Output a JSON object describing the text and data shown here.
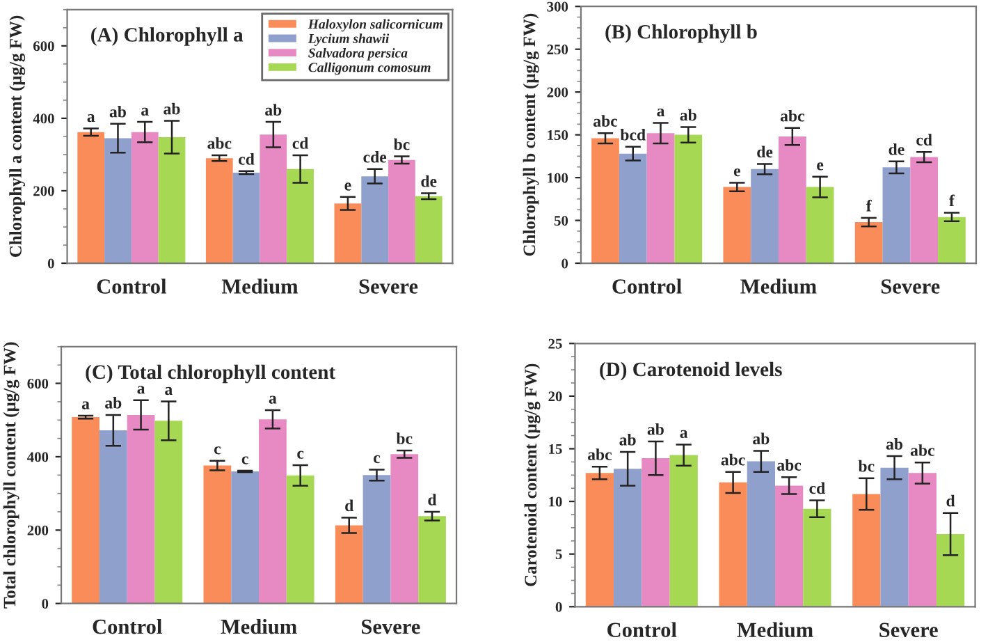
{
  "chart_data": [
    {
      "type": "bar",
      "title": "(A) Chlorophyll a",
      "ylabel": "Chlorophyll a content (μg/g FW)",
      "categories": [
        "Control",
        "Medium",
        "Severe"
      ],
      "ylim": [
        0,
        700
      ],
      "yticks": [
        0,
        200,
        400,
        600
      ],
      "legend": "top right",
      "series": [
        {
          "name": "Haloxylon salicornicum",
          "color": "#fa8c5a",
          "values": [
            362,
            290,
            165
          ],
          "errors": [
            10,
            8,
            18
          ],
          "value_labels": [
            "a",
            "abc",
            "e"
          ]
        },
        {
          "name": "Lycium shawii",
          "color": "#8fa0cc",
          "values": [
            345,
            250,
            240
          ],
          "errors": [
            40,
            4,
            20
          ],
          "value_labels": [
            "ab",
            "cd",
            "cde"
          ]
        },
        {
          "name": "Salvadora persica",
          "color": "#e78ac3",
          "values": [
            362,
            355,
            285
          ],
          "errors": [
            28,
            35,
            10
          ],
          "value_labels": [
            "a",
            "ab",
            "bc"
          ]
        },
        {
          "name": "Calligonum comosum",
          "color": "#a6d854",
          "values": [
            348,
            260,
            185
          ],
          "errors": [
            45,
            38,
            8
          ],
          "value_labels": [
            "ab",
            "cd",
            "de"
          ]
        }
      ]
    },
    {
      "type": "bar",
      "title": "(B) Chlorophyll b",
      "ylabel": "Chlorophyll b content (μg/g FW)",
      "categories": [
        "Control",
        "Medium",
        "Severe"
      ],
      "ylim": [
        0,
        300
      ],
      "yticks": [
        0,
        50,
        100,
        150,
        200,
        250,
        300
      ],
      "series": [
        {
          "color": "#fa8c5a",
          "values": [
            146,
            89,
            48
          ],
          "errors": [
            6,
            5,
            5
          ],
          "value_labels": [
            "abc",
            "e",
            "f"
          ]
        },
        {
          "color": "#8fa0cc",
          "values": [
            128,
            110,
            112
          ],
          "errors": [
            8,
            6,
            7
          ],
          "value_labels": [
            "bcd",
            "de",
            "de"
          ]
        },
        {
          "color": "#e78ac3",
          "values": [
            152,
            148,
            124
          ],
          "errors": [
            12,
            10,
            6
          ],
          "value_labels": [
            "a",
            "abc",
            "cd"
          ]
        },
        {
          "color": "#a6d854",
          "values": [
            150,
            89,
            54
          ],
          "errors": [
            9,
            12,
            5
          ],
          "value_labels": [
            "ab",
            "e",
            "f"
          ]
        }
      ]
    },
    {
      "type": "bar",
      "title": "(C) Total chlorophyll content",
      "ylabel": "Total chlorophyll content (μg/g FW)",
      "categories": [
        "Control",
        "Medium",
        "Severe"
      ],
      "ylim": [
        0,
        700
      ],
      "yticks": [
        0,
        200,
        400,
        600
      ],
      "series": [
        {
          "color": "#fa8c5a",
          "values": [
            508,
            376,
            213
          ],
          "errors": [
            4,
            13,
            21
          ],
          "value_labels": [
            "a",
            "c",
            "d"
          ]
        },
        {
          "color": "#8fa0cc",
          "values": [
            472,
            360,
            350
          ],
          "errors": [
            42,
            2,
            15
          ],
          "value_labels": [
            "ab",
            "c",
            "c"
          ]
        },
        {
          "color": "#e78ac3",
          "values": [
            514,
            502,
            407
          ],
          "errors": [
            40,
            25,
            10
          ],
          "value_labels": [
            "a",
            "a",
            "bc"
          ]
        },
        {
          "color": "#a6d854",
          "values": [
            498,
            349,
            238
          ],
          "errors": [
            53,
            28,
            12
          ],
          "value_labels": [
            "a",
            "c",
            "d"
          ]
        }
      ]
    },
    {
      "type": "bar",
      "title": "(D) Carotenoid levels",
      "ylabel": "Carotenoid content (μg/g FW)",
      "categories": [
        "Control",
        "Medium",
        "Severe"
      ],
      "ylim": [
        0,
        25
      ],
      "yticks": [
        0,
        5,
        10,
        15,
        20,
        25
      ],
      "series": [
        {
          "color": "#fa8c5a",
          "values": [
            12.7,
            11.8,
            10.7
          ],
          "errors": [
            0.6,
            1.0,
            1.5
          ],
          "value_labels": [
            "abc",
            "abc",
            "bc"
          ]
        },
        {
          "color": "#8fa0cc",
          "values": [
            13.1,
            13.8,
            13.2
          ],
          "errors": [
            1.6,
            1.0,
            1.1
          ],
          "value_labels": [
            "ab",
            "ab",
            "ab"
          ]
        },
        {
          "color": "#e78ac3",
          "values": [
            14.1,
            11.5,
            12.7
          ],
          "errors": [
            1.6,
            0.8,
            1.0
          ],
          "value_labels": [
            "ab",
            "abc",
            "abc"
          ]
        },
        {
          "color": "#a6d854",
          "values": [
            14.4,
            9.3,
            6.9
          ],
          "errors": [
            1.0,
            0.8,
            2.0
          ],
          "value_labels": [
            "a",
            "cd",
            "d"
          ]
        }
      ]
    }
  ]
}
